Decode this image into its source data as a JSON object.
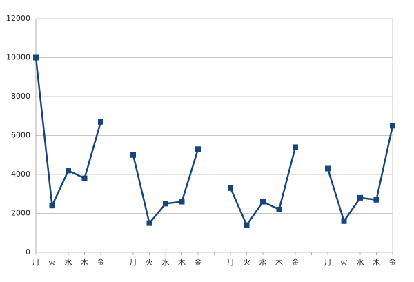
{
  "chart_data": {
    "type": "line",
    "categories": [
      "月",
      "火",
      "水",
      "木",
      "金",
      null,
      "月",
      "火",
      "水",
      "木",
      "金",
      null,
      "月",
      "火",
      "水",
      "木",
      "金",
      null,
      "月",
      "火",
      "水",
      "木",
      "金"
    ],
    "series": [
      {
        "color": "#17457c",
        "values": [
          10000,
          2400,
          4200,
          3800,
          6700,
          null,
          5000,
          1500,
          2500,
          2600,
          5300,
          null,
          3300,
          1400,
          2600,
          2200,
          5400,
          null,
          4300,
          1600,
          2800,
          2700,
          6500
        ]
      }
    ],
    "ylim": [
      0,
      12000
    ],
    "yticks": [
      0,
      2000,
      4000,
      6000,
      8000,
      10000,
      12000
    ],
    "grid": true
  }
}
